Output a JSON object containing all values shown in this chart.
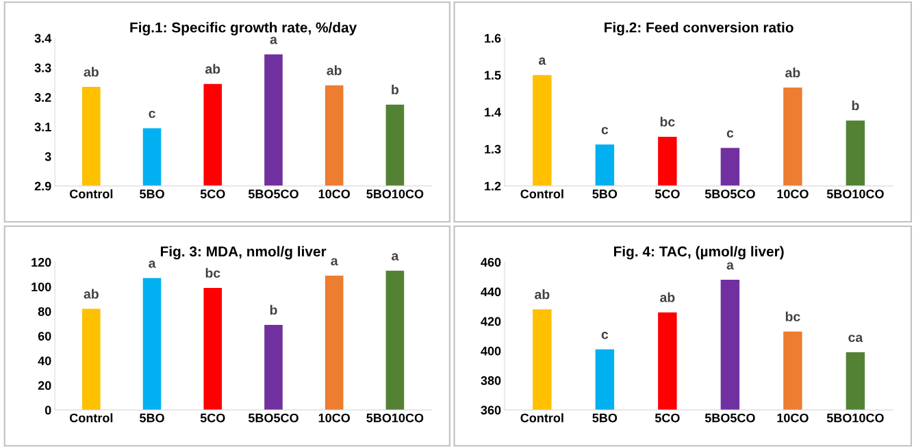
{
  "chart_data": [
    {
      "type": "bar",
      "title": "Fig.1: Specific growth rate, %/day",
      "categories": [
        "Control",
        "5BO",
        "5CO",
        "5BO5CO",
        "10CO",
        "5BO10CO"
      ],
      "values": [
        3.235,
        3.095,
        3.245,
        3.345,
        3.24,
        3.175
      ],
      "colors": [
        "#ffc000",
        "#00b0f0",
        "#ff0000",
        "#7030a0",
        "#ed7d31",
        "#548235"
      ],
      "ylim": [
        2.9,
        3.4
      ],
      "yticks": [
        2.9,
        3,
        3.1,
        3.2,
        3.3,
        3.4
      ],
      "grid": false,
      "legend": false,
      "annotations": [
        {
          "text": "ab",
          "x": "Control",
          "y": 3.235
        },
        {
          "text": "c",
          "x": "5BO",
          "y": 3.095
        },
        {
          "text": "ab",
          "x": "5CO",
          "y": 3.245
        },
        {
          "text": "a",
          "x": "5BO5CO",
          "y": 3.345
        },
        {
          "text": "ab",
          "x": "10CO",
          "y": 3.24
        },
        {
          "text": "b",
          "x": "5BO10CO",
          "y": 3.175
        }
      ]
    },
    {
      "type": "bar",
      "title": "Fig.2: Feed conversion ratio",
      "categories": [
        "Control",
        "5BO",
        "5CO",
        "5BO5CO",
        "10CO",
        "5BO10CO"
      ],
      "values": [
        1.5,
        1.312,
        1.333,
        1.303,
        1.466,
        1.377
      ],
      "colors": [
        "#ffc000",
        "#00b0f0",
        "#ff0000",
        "#7030a0",
        "#ed7d31",
        "#548235"
      ],
      "ylim": [
        1.2,
        1.6
      ],
      "yticks": [
        1.2,
        1.3,
        1.4,
        1.5,
        1.6
      ],
      "grid": false,
      "legend": false,
      "annotations": [
        {
          "text": "a",
          "x": "Control",
          "y": 1.5
        },
        {
          "text": "c",
          "x": "5BO",
          "y": 1.312
        },
        {
          "text": "bc",
          "x": "5CO",
          "y": 1.333
        },
        {
          "text": "c",
          "x": "5BO5CO",
          "y": 1.303
        },
        {
          "text": "ab",
          "x": "10CO",
          "y": 1.466
        },
        {
          "text": "b",
          "x": "5BO10CO",
          "y": 1.377
        }
      ]
    },
    {
      "type": "bar",
      "title": "Fig. 3: MDA, nmol/g liver",
      "categories": [
        "Control",
        "5BO",
        "5CO",
        "5BO5CO",
        "10CO",
        "5BO10CO"
      ],
      "values": [
        82,
        107,
        99,
        69,
        109,
        113
      ],
      "colors": [
        "#ffc000",
        "#00b0f0",
        "#ff0000",
        "#7030a0",
        "#ed7d31",
        "#548235"
      ],
      "ylim": [
        0,
        120
      ],
      "yticks": [
        0,
        20,
        40,
        60,
        80,
        100,
        120
      ],
      "grid": false,
      "legend": false,
      "annotations": [
        {
          "text": "ab",
          "x": "Control",
          "y": 82
        },
        {
          "text": "a",
          "x": "5BO",
          "y": 107
        },
        {
          "text": "bc",
          "x": "5CO",
          "y": 99
        },
        {
          "text": "b",
          "x": "5BO5CO",
          "y": 69
        },
        {
          "text": "a",
          "x": "10CO",
          "y": 109
        },
        {
          "text": "a",
          "x": "5BO10CO",
          "y": 113
        }
      ]
    },
    {
      "type": "bar",
      "title": "Fig. 4: TAC, (µmol/g liver)",
      "categories": [
        "Control",
        "5BO",
        "5CO",
        "5BO5CO",
        "10CO",
        "5BO10CO"
      ],
      "values": [
        428,
        401,
        426,
        448,
        413,
        399
      ],
      "colors": [
        "#ffc000",
        "#00b0f0",
        "#ff0000",
        "#7030a0",
        "#ed7d31",
        "#548235"
      ],
      "ylim": [
        360,
        460
      ],
      "yticks": [
        360,
        380,
        400,
        420,
        440,
        460
      ],
      "grid": false,
      "legend": false,
      "annotations": [
        {
          "text": "ab",
          "x": "Control",
          "y": 428
        },
        {
          "text": "c",
          "x": "5BO",
          "y": 401
        },
        {
          "text": "ab",
          "x": "5CO",
          "y": 426
        },
        {
          "text": "a",
          "x": "5BO5CO",
          "y": 448
        },
        {
          "text": "bc",
          "x": "10CO",
          "y": 413
        },
        {
          "text": "ca",
          "x": "5BO10CO",
          "y": 399
        }
      ]
    }
  ]
}
